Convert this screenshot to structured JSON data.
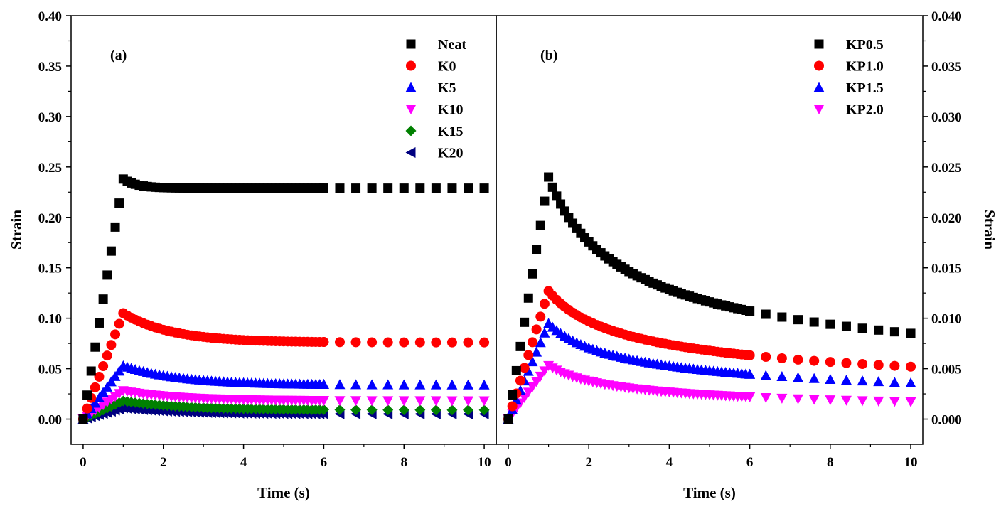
{
  "chart_data": [
    {
      "type": "scatter",
      "panel_label": "(a)",
      "xlabel": "Time (s)",
      "ylabel": "Strain",
      "xlim": [
        -0.3,
        10.3
      ],
      "ylim": [
        -0.025,
        0.4
      ],
      "xticks": [
        "0",
        "2",
        "4",
        "6",
        "8",
        "10"
      ],
      "yticks": [
        "0.00",
        "0.05",
        "0.10",
        "0.15",
        "0.20",
        "0.25",
        "0.30",
        "0.35",
        "0.40"
      ],
      "y_axis_side": "left",
      "legend_position": "top-right",
      "series": [
        {
          "name": "Neat",
          "marker": "square",
          "color": "#000000",
          "peak": 0.238,
          "plateau": 0.229,
          "tau": 0.35
        },
        {
          "name": "K0",
          "marker": "circle",
          "color": "#ff0000",
          "peak": 0.105,
          "plateau": 0.076,
          "tau": 1.2
        },
        {
          "name": "K5",
          "marker": "triangle-up",
          "color": "#0000ff",
          "peak": 0.053,
          "plateau": 0.034,
          "tau": 1.4
        },
        {
          "name": "K10",
          "marker": "triangle-down",
          "color": "#ff00ff",
          "peak": 0.028,
          "plateau": 0.018,
          "tau": 1.4
        },
        {
          "name": "K15",
          "marker": "diamond",
          "color": "#008000",
          "peak": 0.018,
          "plateau": 0.009,
          "tau": 1.5
        },
        {
          "name": "K20",
          "marker": "triangle-left",
          "color": "#000080",
          "peak": 0.011,
          "plateau": 0.005,
          "tau": 1.5
        }
      ]
    },
    {
      "type": "scatter",
      "panel_label": "(b)",
      "xlabel": "Time (s)",
      "ylabel": "Strain",
      "xlim": [
        -0.3,
        10.3
      ],
      "ylim": [
        -0.0025,
        0.04
      ],
      "xticks": [
        "0",
        "2",
        "4",
        "6",
        "8",
        "10"
      ],
      "yticks": [
        "0.000",
        "0.005",
        "0.010",
        "0.015",
        "0.020",
        "0.025",
        "0.030",
        "0.035",
        "0.040"
      ],
      "y_axis_side": "right",
      "legend_position": "top-right",
      "series": [
        {
          "name": "KP0.5",
          "marker": "square",
          "color": "#000000",
          "peak": 0.024,
          "plateau": 0.0085,
          "decay_power": 0.45
        },
        {
          "name": "KP1.0",
          "marker": "circle",
          "color": "#ff0000",
          "peak": 0.0127,
          "plateau": 0.0052,
          "decay_power": 0.4
        },
        {
          "name": "KP1.5",
          "marker": "triangle-up",
          "color": "#0000ff",
          "peak": 0.0095,
          "plateau": 0.0036,
          "decay_power": 0.43
        },
        {
          "name": "KP2.0",
          "marker": "triangle-down",
          "color": "#ff00ff",
          "peak": 0.0053,
          "plateau": 0.0017,
          "decay_power": 0.5
        }
      ]
    }
  ]
}
